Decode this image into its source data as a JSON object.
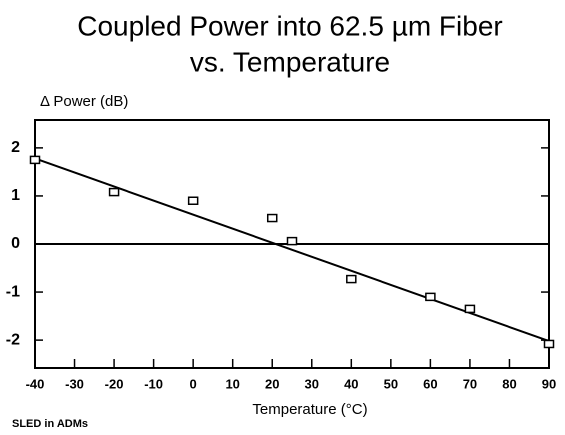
{
  "chart_data": {
    "type": "scatter",
    "title": [
      "Coupled Power into 62.5 µm Fiber",
      "vs. Temperature"
    ],
    "y_label": "Δ Power (dB)",
    "x_label": "Temperature (°C)",
    "note": "SLED in ADMs",
    "series": [
      {
        "type": "scatter",
        "color": "#000000",
        "x": [
          -40,
          -20,
          0,
          20,
          25,
          40,
          60,
          70,
          90
        ],
        "values": [
          1.75,
          1.08,
          0.9,
          0.54,
          0.06,
          -0.73,
          -1.1,
          -1.35,
          -2.08
        ]
      },
      {
        "type": "line",
        "color": "#000000",
        "x": [
          -40,
          90
        ],
        "values": [
          1.78,
          -2.02
        ]
      }
    ],
    "hline": 0,
    "xlim": [
      -40,
      90
    ],
    "xticks": [
      -40,
      -30,
      -20,
      -10,
      0,
      10,
      20,
      30,
      40,
      50,
      60,
      70,
      80,
      90
    ],
    "ylim": [
      -2.58,
      2.58
    ],
    "yticks": [
      -2,
      -1,
      0,
      1,
      2
    ]
  }
}
